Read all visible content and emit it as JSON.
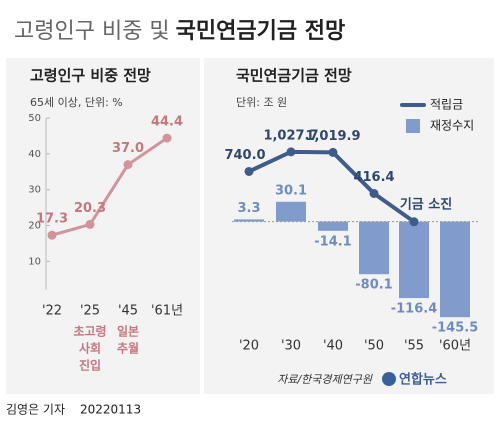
{
  "header": {
    "title_light": "고령인구 비중 및",
    "title_bold": "국민연금기금 전망"
  },
  "chart_data": [
    {
      "type": "line",
      "title": "고령인구 비중 전망",
      "subtitle": "65세 이상, 단위: %",
      "categories": [
        "'22",
        "'25",
        "'45",
        "'61년"
      ],
      "values": [
        17.3,
        20.3,
        37.0,
        44.4
      ],
      "value_labels": [
        "17.3",
        "20.3",
        "37.0",
        "44.4"
      ],
      "color": "#d4939b",
      "ylim": [
        2,
        50
      ],
      "yticks": [
        10,
        20,
        30,
        40,
        50
      ],
      "annotations": [
        {
          "at": "'25",
          "lines": [
            "초고령",
            "사회",
            "진입"
          ]
        },
        {
          "at": "'45",
          "lines": [
            "일본",
            "추월"
          ]
        }
      ]
    },
    {
      "type": "bar-line",
      "title": "국민연금기금 전망",
      "subtitle": "단위: 조 원",
      "categories": [
        "'20",
        "'30",
        "'40",
        "'50",
        "'55",
        "'60년"
      ],
      "series": [
        {
          "name": "적립금",
          "type": "line",
          "axis": "y2",
          "color": "#3f5c8e",
          "values": [
            740.0,
            1027.7,
            1019.9,
            416.4,
            0,
            null
          ],
          "value_labels": [
            "740.0",
            "1,027.7",
            "1,019.9",
            "416.4",
            null,
            null
          ]
        },
        {
          "name": "재정수지",
          "type": "bar",
          "color": "#7f9ccd",
          "values": [
            3.3,
            30.1,
            -14.1,
            -80.1,
            -116.4,
            -145.5
          ]
        }
      ],
      "ylim": [
        -165,
        185
      ],
      "y2lim": [
        -1590,
        1790
      ],
      "legend": "top-right",
      "annotations": [
        {
          "at": "'55",
          "text": "기금 소진"
        }
      ]
    }
  ],
  "source": "자료/한국경제연구원",
  "logo": "연합뉴스",
  "credit": "김영은 기자",
  "date": "20220113"
}
